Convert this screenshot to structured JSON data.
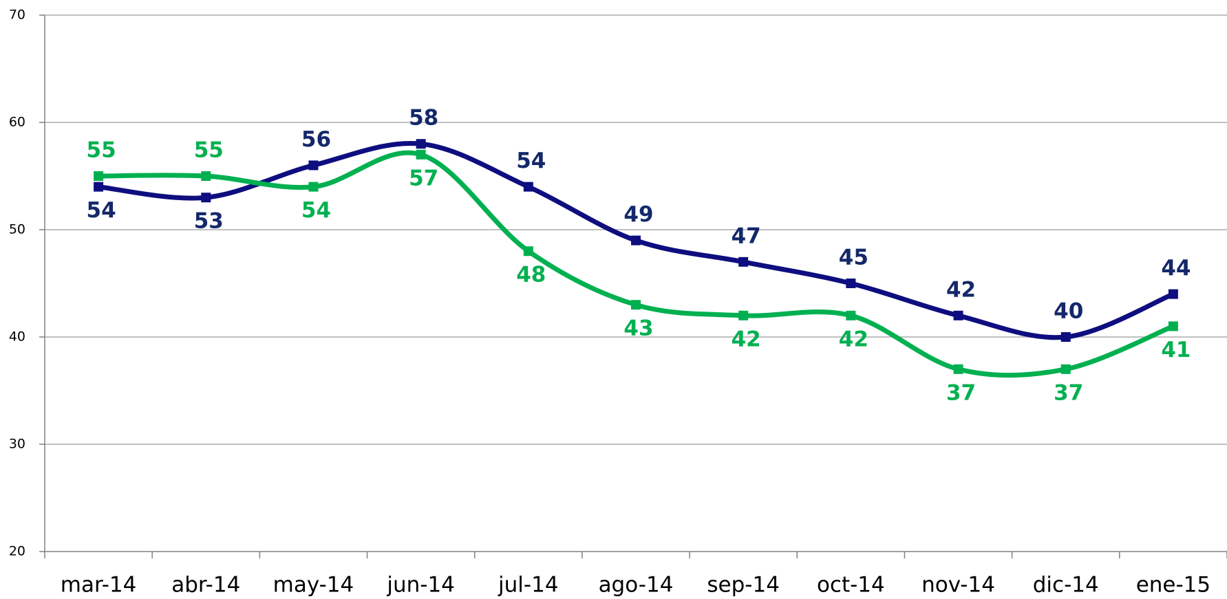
{
  "chart_data": {
    "type": "line",
    "categories": [
      "mar-14",
      "abr-14",
      "may-14",
      "jun-14",
      "jul-14",
      "ago-14",
      "sep-14",
      "oct-14",
      "nov-14",
      "dic-14",
      "ene-15"
    ],
    "series": [
      {
        "color": "#0e0e80",
        "label_color": "#14286a",
        "values": [
          54,
          53,
          56,
          58,
          54,
          49,
          47,
          45,
          42,
          40,
          44
        ]
      },
      {
        "color": "#00b050",
        "label_color": "#00b050",
        "values": [
          55,
          55,
          54,
          57,
          48,
          43,
          42,
          42,
          37,
          37,
          41
        ]
      }
    ],
    "ylim": [
      20,
      70
    ],
    "yticks": [
      20,
      30,
      40,
      50,
      60,
      70
    ],
    "grid": true
  }
}
